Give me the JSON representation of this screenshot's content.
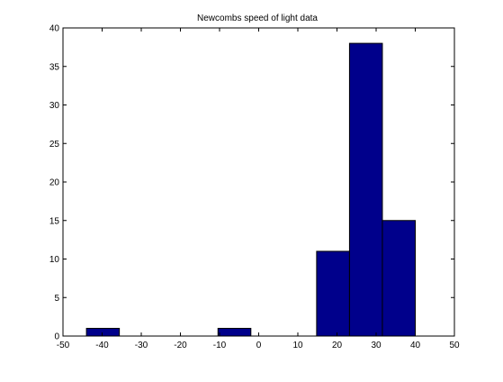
{
  "chart_data": {
    "type": "bar",
    "title": "Newcombs speed of light data",
    "xlabel": "",
    "ylabel": "",
    "xlim": [
      -50,
      50
    ],
    "ylim": [
      0,
      40
    ],
    "xticks": [
      -50,
      -40,
      -30,
      -20,
      -10,
      0,
      10,
      20,
      30,
      40,
      50
    ],
    "yticks": [
      0,
      5,
      10,
      15,
      20,
      25,
      30,
      35,
      40
    ],
    "grid": false,
    "bar_color": "#00008b",
    "bins": [
      {
        "x0": -44,
        "x1": -35.6,
        "count": 1
      },
      {
        "x0": -35.6,
        "x1": -27.2,
        "count": 0
      },
      {
        "x0": -27.2,
        "x1": -18.8,
        "count": 0
      },
      {
        "x0": -18.8,
        "x1": -10.4,
        "count": 0
      },
      {
        "x0": -10.4,
        "x1": -2.0,
        "count": 1
      },
      {
        "x0": -2.0,
        "x1": 6.4,
        "count": 0
      },
      {
        "x0": 6.4,
        "x1": 14.8,
        "count": 0
      },
      {
        "x0": 14.8,
        "x1": 23.2,
        "count": 11
      },
      {
        "x0": 23.2,
        "x1": 31.6,
        "count": 38
      },
      {
        "x0": 31.6,
        "x1": 40.0,
        "count": 15
      }
    ]
  }
}
